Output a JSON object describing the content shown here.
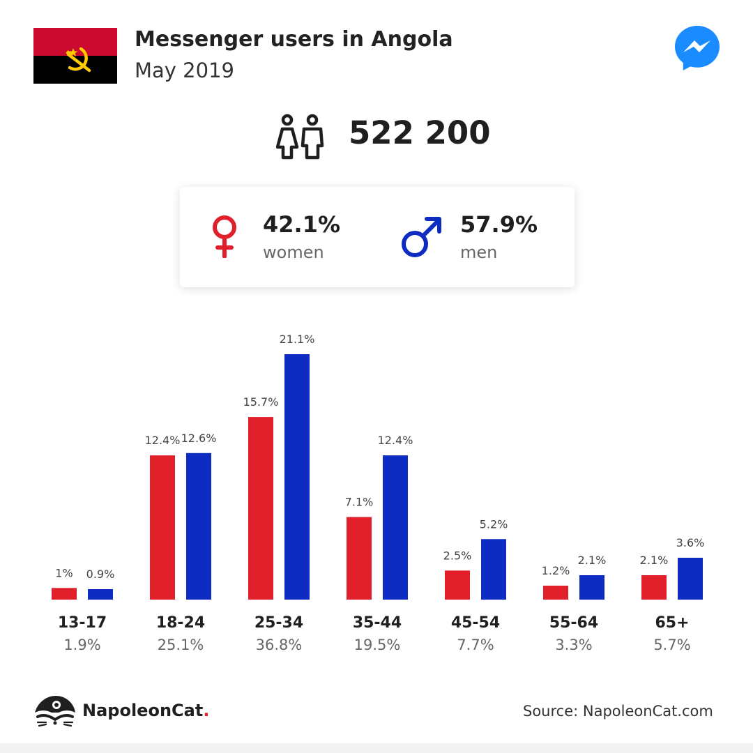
{
  "header": {
    "title": "Messenger users in Angola",
    "subtitle": "May 2019",
    "flag_icon": "angola-flag-icon",
    "logo_icon": "messenger-logo-icon"
  },
  "summary": {
    "total_users": "522 200",
    "icon": "users-icon"
  },
  "gender": {
    "women_value": "42.1%",
    "women_label": "women",
    "men_value": "57.9%",
    "men_label": "men"
  },
  "colors": {
    "women": "#e0202a",
    "men": "#0e2bc2",
    "flag_red": "#cc092f",
    "flag_black": "#000000",
    "flag_emblem": "#ffcb00",
    "messenger": "#1a8cff"
  },
  "chart_data": {
    "type": "bar",
    "categories": [
      "13-17",
      "18-24",
      "25-34",
      "35-44",
      "45-54",
      "55-64",
      "65+"
    ],
    "category_totals": [
      "1.9%",
      "25.1%",
      "36.8%",
      "19.5%",
      "7.7%",
      "3.3%",
      "5.7%"
    ],
    "series": [
      {
        "values": [
          1,
          12.4,
          15.7,
          7.1,
          2.5,
          1.2,
          2.1
        ],
        "labels": [
          "1%",
          "12.4%",
          "15.7%",
          "7.1%",
          "2.5%",
          "1.2%",
          "2.1%"
        ],
        "color": "#e0202a"
      },
      {
        "values": [
          0.9,
          12.6,
          21.1,
          12.4,
          5.2,
          2.1,
          3.6
        ],
        "labels": [
          "0.9%",
          "12.6%",
          "21.1%",
          "12.4%",
          "5.2%",
          "2.1%",
          "3.6%"
        ],
        "color": "#0e2bc2"
      }
    ],
    "ylim": [
      0,
      21.1
    ],
    "grid": false,
    "legend": "none"
  },
  "footer": {
    "brand_name": "NapoleonCat",
    "brand_dot": ".",
    "source": "Source: NapoleonCat.com",
    "brand_icon": "napoleoncat-logo-icon"
  }
}
